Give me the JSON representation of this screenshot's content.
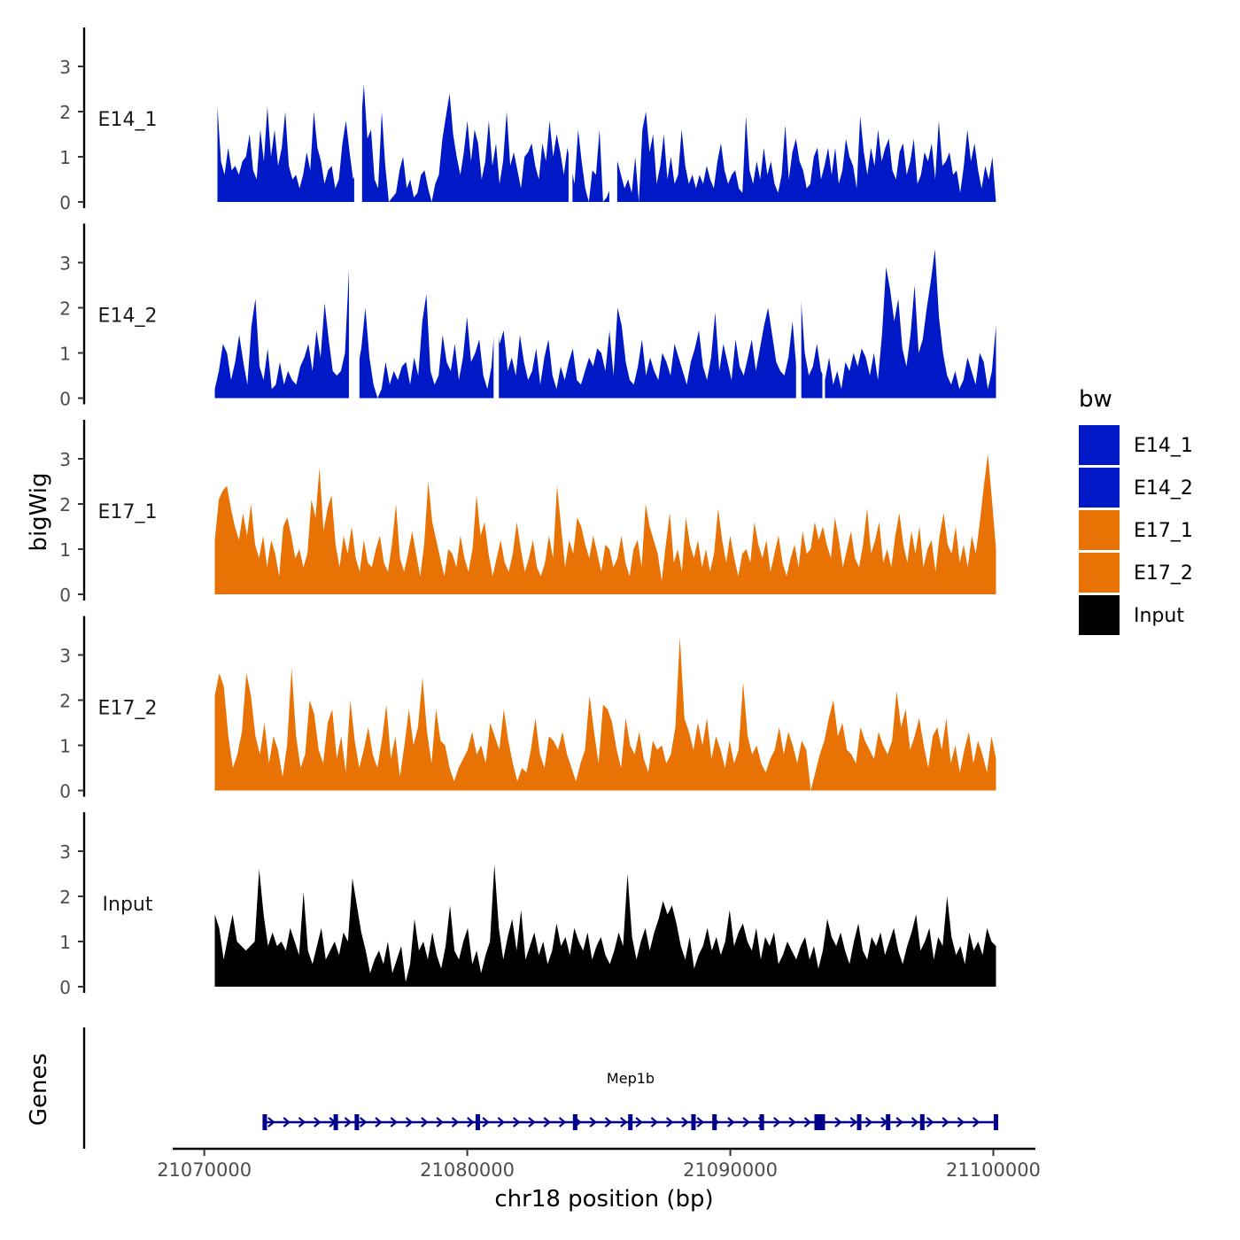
{
  "chart_data": {
    "type": "area",
    "ylabel": "bigWig",
    "xlabel": "chr18 position (bp)",
    "genes_label": "Genes",
    "legend": {
      "title": "bw",
      "position": "right",
      "entries": [
        {
          "name": "E14_1",
          "color": "#0019c6"
        },
        {
          "name": "E14_2",
          "color": "#0019c6"
        },
        {
          "name": "E17_1",
          "color": "#e87203"
        },
        {
          "name": "E17_2",
          "color": "#e87203"
        },
        {
          "name": "Input",
          "color": "#000000"
        }
      ]
    },
    "xlim": [
      21068800,
      21101600
    ],
    "x_ticks": [
      21070000,
      21080000,
      21090000,
      21100000
    ],
    "x_tick_labels": [
      "21070000",
      "21080000",
      "21090000",
      "21100000"
    ],
    "track_ylim": [
      0,
      3.9
    ],
    "y_ticks": [
      0,
      1,
      2,
      3
    ],
    "y_tick_labels": [
      "0",
      "1",
      "2",
      "3"
    ],
    "tracks": [
      {
        "name": "E14_1",
        "label": "E14_1",
        "color": "#0019c6",
        "x_start": 21070500,
        "x_end": 21100100,
        "values": [
          2.1,
          0.9,
          0.6,
          1.2,
          0.7,
          0.8,
          0.6,
          0.9,
          1.0,
          1.5,
          0.7,
          0.5,
          1.6,
          0.9,
          2.1,
          1.0,
          1.6,
          0.8,
          1.2,
          2.0,
          0.8,
          0.5,
          0.6,
          0.3,
          0.6,
          1.1,
          0.7,
          2.0,
          1.2,
          0.9,
          0.4,
          0.7,
          0.8,
          0.3,
          0.5,
          1.3,
          1.8,
          1.1,
          0.5,
          0.7,
          1.5,
          2.6,
          1.4,
          1.6,
          0.5,
          0.3,
          2.0,
          0.8,
          0.0,
          0.1,
          0.2,
          0.7,
          1.0,
          0.3,
          0.5,
          0.1,
          0.2,
          0.6,
          0.7,
          0.3,
          0.0,
          0.4,
          0.6,
          1.4,
          1.9,
          2.4,
          1.5,
          1.0,
          0.6,
          1.1,
          1.8,
          0.9,
          1.6,
          1.3,
          0.5,
          0.9,
          1.8,
          0.8,
          1.3,
          0.4,
          0.9,
          2.0,
          0.8,
          1.1,
          0.7,
          0.3,
          1.0,
          1.1,
          1.3,
          0.8,
          0.5,
          1.3,
          0.9,
          1.8,
          1.0,
          1.5,
          1.1,
          0.6,
          1.2,
          0.8,
          0.4,
          1.6,
          0.9,
          0.3,
          0.0,
          0.7,
          0.6,
          1.6,
          0.0,
          0.1,
          0.3,
          0.5,
          0.9,
          0.6,
          0.3,
          0.5,
          0.2,
          1.0,
          0.0,
          1.6,
          2.0,
          1.1,
          1.5,
          0.4,
          0.8,
          1.5,
          0.5,
          1.0,
          0.4,
          0.6,
          1.6,
          0.8,
          0.4,
          0.6,
          0.3,
          0.6,
          0.4,
          0.8,
          0.5,
          0.3,
          0.9,
          1.3,
          0.7,
          0.4,
          0.6,
          0.7,
          0.3,
          0.2,
          1.9,
          0.7,
          0.4,
          0.9,
          0.5,
          1.2,
          0.6,
          0.9,
          0.4,
          0.2,
          0.6,
          1.7,
          0.5,
          1.1,
          1.4,
          0.9,
          0.7,
          0.3,
          0.4,
          1.0,
          1.2,
          0.5,
          0.8,
          1.2,
          0.6,
          1.2,
          0.4,
          0.7,
          1.4,
          1.0,
          0.8,
          0.3,
          1.9,
          1.1,
          0.6,
          1.2,
          0.8,
          1.6,
          0.9,
          1.2,
          1.4,
          0.7,
          0.5,
          1.1,
          1.3,
          0.6,
          0.9,
          1.4,
          0.4,
          0.6,
          1.1,
          0.9,
          1.3,
          0.5,
          1.8,
          0.8,
          0.9,
          1.1,
          0.6,
          0.7,
          0.2,
          0.8,
          1.6,
          0.9,
          1.3,
          0.7,
          0.3,
          0.8,
          0.5,
          1.0,
          0.0
        ],
        "gaps": [
          [
            21075700,
            21076000
          ],
          [
            21083850,
            21084000
          ],
          [
            21085400,
            21085700
          ]
        ]
      },
      {
        "name": "E14_2",
        "label": "E14_2",
        "color": "#0019c6",
        "x_start": 21070400,
        "x_end": 21100100,
        "values": [
          0.2,
          0.6,
          1.2,
          1.0,
          0.4,
          0.8,
          1.4,
          0.8,
          0.3,
          1.6,
          2.2,
          0.7,
          0.4,
          1.1,
          0.2,
          0.3,
          0.8,
          0.3,
          0.6,
          0.4,
          0.3,
          0.7,
          0.9,
          1.2,
          0.6,
          1.5,
          0.9,
          2.1,
          1.3,
          0.6,
          0.5,
          0.6,
          1.0,
          2.9,
          1.3,
          0.6,
          1.1,
          2.0,
          0.9,
          0.3,
          0.0,
          0.2,
          0.8,
          0.3,
          0.6,
          0.4,
          0.7,
          0.8,
          0.3,
          0.9,
          0.5,
          1.7,
          2.3,
          0.6,
          0.3,
          0.5,
          1.4,
          0.8,
          0.6,
          1.2,
          0.4,
          0.9,
          1.8,
          0.8,
          1.0,
          1.3,
          0.5,
          0.2,
          0.7,
          1.9,
          1.2,
          1.5,
          0.6,
          0.9,
          0.5,
          1.4,
          0.8,
          0.4,
          0.6,
          1.1,
          0.3,
          0.9,
          1.3,
          0.5,
          0.2,
          0.7,
          0.4,
          0.8,
          1.1,
          0.4,
          0.3,
          0.6,
          0.9,
          0.7,
          1.1,
          1.0,
          0.6,
          1.5,
          0.5,
          2.0,
          1.6,
          0.8,
          0.4,
          0.3,
          0.7,
          1.3,
          0.5,
          0.9,
          0.6,
          0.4,
          1.0,
          0.8,
          0.5,
          1.2,
          0.9,
          0.6,
          0.3,
          0.8,
          1.1,
          1.5,
          0.7,
          0.4,
          0.9,
          1.9,
          0.6,
          1.2,
          0.8,
          0.4,
          1.3,
          0.7,
          0.5,
          0.9,
          1.3,
          0.6,
          1.1,
          1.6,
          2.0,
          1.4,
          0.8,
          0.6,
          0.5,
          0.9,
          1.7,
          0.6,
          2.3,
          1.0,
          0.5,
          0.7,
          1.2,
          0.6,
          0.4,
          0.9,
          0.3,
          0.6,
          0.2,
          0.8,
          0.6,
          1.0,
          0.7,
          1.1,
          0.9,
          0.5,
          1.0,
          0.4,
          1.4,
          2.9,
          2.4,
          1.7,
          2.2,
          1.1,
          0.7,
          1.4,
          2.5,
          1.0,
          1.3,
          2.0,
          2.6,
          3.3,
          1.8,
          1.0,
          0.5,
          0.3,
          0.6,
          0.2,
          0.4,
          0.9,
          0.6,
          0.3,
          1.0,
          0.8,
          0.2,
          0.6,
          1.6
        ],
        "gaps": [
          [
            21075500,
            21075900
          ],
          [
            21081000,
            21081200
          ],
          [
            21092500,
            21092700
          ],
          [
            21093500,
            21093600
          ]
        ]
      },
      {
        "name": "E17_1",
        "label": "E17_1",
        "color": "#e87203",
        "x_start": 21070400,
        "x_end": 21100100,
        "values": [
          1.2,
          2.1,
          2.3,
          2.4,
          1.9,
          1.5,
          1.2,
          1.8,
          1.3,
          2.0,
          1.1,
          0.8,
          1.3,
          0.6,
          1.2,
          0.9,
          0.4,
          1.5,
          1.7,
          1.3,
          0.8,
          1.0,
          0.6,
          0.9,
          2.1,
          1.7,
          2.8,
          1.4,
          1.9,
          2.2,
          1.1,
          0.6,
          1.3,
          0.9,
          1.5,
          0.8,
          0.5,
          1.2,
          0.7,
          0.6,
          1.0,
          1.3,
          0.7,
          0.5,
          1.1,
          2.0,
          0.8,
          0.5,
          0.9,
          1.4,
          0.9,
          0.4,
          1.1,
          2.5,
          1.6,
          1.2,
          0.8,
          0.4,
          1.0,
          0.9,
          0.6,
          1.3,
          0.8,
          0.5,
          1.0,
          2.2,
          1.3,
          1.6,
          0.9,
          0.4,
          0.8,
          1.2,
          0.7,
          0.5,
          0.9,
          1.6,
          1.0,
          0.5,
          0.8,
          1.2,
          0.6,
          0.4,
          0.7,
          1.3,
          0.8,
          2.4,
          1.5,
          0.6,
          1.2,
          0.9,
          1.7,
          1.5,
          1.1,
          0.8,
          1.3,
          0.9,
          0.5,
          1.1,
          1.0,
          0.6,
          0.8,
          1.3,
          0.7,
          0.4,
          1.0,
          1.2,
          0.6,
          2.0,
          1.5,
          1.2,
          0.9,
          0.3,
          1.1,
          1.8,
          0.7,
          1.0,
          0.5,
          1.7,
          1.1,
          0.8,
          1.2,
          0.6,
          1.0,
          0.5,
          0.9,
          1.9,
          1.2,
          0.7,
          1.3,
          0.8,
          0.4,
          0.9,
          1.0,
          0.7,
          1.6,
          1.1,
          0.8,
          1.2,
          0.5,
          0.9,
          1.3,
          0.7,
          0.4,
          0.8,
          1.1,
          0.6,
          1.4,
          0.9,
          1.0,
          1.6,
          1.2,
          1.5,
          1.1,
          0.8,
          1.7,
          1.2,
          0.6,
          1.0,
          1.4,
          0.8,
          0.6,
          1.1,
          1.9,
          0.9,
          1.2,
          1.6,
          0.7,
          1.0,
          0.6,
          1.3,
          1.8,
          1.1,
          0.7,
          1.4,
          0.9,
          1.5,
          0.6,
          1.0,
          1.2,
          0.5,
          1.3,
          1.8,
          1.1,
          0.9,
          1.5,
          0.7,
          1.1,
          0.6,
          1.3,
          0.9,
          1.6,
          2.4,
          3.1,
          2.1,
          1.0
        ]
      },
      {
        "name": "E17_2",
        "label": "E17_2",
        "color": "#e87203",
        "x_start": 21070400,
        "x_end": 21100100,
        "values": [
          2.1,
          2.6,
          2.3,
          1.2,
          0.5,
          0.8,
          1.3,
          2.6,
          2.1,
          1.2,
          0.8,
          1.5,
          0.6,
          1.2,
          0.9,
          0.3,
          1.0,
          2.7,
          1.2,
          0.5,
          0.8,
          2.0,
          1.7,
          0.9,
          0.6,
          1.5,
          1.8,
          0.7,
          1.2,
          0.4,
          2.0,
          1.1,
          0.5,
          0.9,
          1.4,
          0.8,
          0.5,
          1.1,
          1.9,
          0.7,
          1.2,
          0.3,
          1.0,
          1.8,
          1.0,
          1.4,
          2.5,
          1.3,
          0.6,
          1.8,
          1.1,
          1.0,
          0.5,
          0.2,
          0.5,
          0.7,
          0.9,
          1.3,
          0.8,
          1.0,
          0.6,
          1.5,
          1.2,
          0.9,
          1.8,
          1.1,
          0.6,
          0.2,
          0.5,
          0.4,
          0.9,
          1.6,
          0.8,
          0.5,
          1.2,
          1.1,
          0.9,
          1.3,
          0.8,
          0.5,
          0.2,
          0.6,
          0.9,
          2.1,
          1.3,
          0.6,
          1.9,
          1.8,
          1.5,
          0.9,
          0.5,
          1.6,
          1.0,
          0.8,
          1.3,
          0.7,
          0.4,
          1.1,
          0.9,
          1.0,
          0.6,
          0.8,
          1.4,
          3.4,
          1.6,
          1.3,
          0.9,
          1.5,
          1.0,
          1.6,
          0.7,
          1.2,
          0.9,
          0.5,
          1.1,
          0.6,
          0.9,
          2.4,
          1.2,
          0.8,
          1.0,
          0.6,
          0.4,
          0.7,
          0.9,
          1.4,
          0.8,
          1.3,
          1.0,
          0.6,
          1.1,
          0.9,
          0.0,
          0.4,
          0.8,
          1.1,
          1.6,
          2.0,
          1.2,
          1.5,
          0.9,
          0.8,
          0.6,
          1.4,
          1.1,
          0.9,
          0.7,
          1.3,
          1.0,
          0.8,
          1.1,
          2.2,
          1.4,
          1.8,
          0.9,
          1.2,
          1.6,
          1.0,
          0.5,
          1.2,
          1.4,
          0.9,
          1.6,
          0.6,
          1.0,
          0.4,
          0.9,
          1.3,
          0.6,
          1.1,
          0.8,
          0.4,
          1.2,
          0.7
        ]
      },
      {
        "name": "Input",
        "label": "Input",
        "color": "#000000",
        "x_start": 21070400,
        "x_end": 21100100,
        "values": [
          1.6,
          1.3,
          0.6,
          1.1,
          1.6,
          1.0,
          0.9,
          0.8,
          0.9,
          1.0,
          2.6,
          1.6,
          0.9,
          1.2,
          0.9,
          1.0,
          0.8,
          1.3,
          1.0,
          0.7,
          2.1,
          0.8,
          0.5,
          0.9,
          1.3,
          0.6,
          0.8,
          1.0,
          0.7,
          1.2,
          1.0,
          2.4,
          1.8,
          1.2,
          0.8,
          0.3,
          0.6,
          0.8,
          0.5,
          1.0,
          0.3,
          0.6,
          0.9,
          0.1,
          0.5,
          1.5,
          0.8,
          1.0,
          0.6,
          1.2,
          0.7,
          0.4,
          0.9,
          1.8,
          0.8,
          0.6,
          1.0,
          1.3,
          0.5,
          0.8,
          0.3,
          0.7,
          1.0,
          2.7,
          1.3,
          0.6,
          1.1,
          1.5,
          0.8,
          1.7,
          0.6,
          0.9,
          1.2,
          0.7,
          1.0,
          0.5,
          0.8,
          1.4,
          0.9,
          1.1,
          0.7,
          1.3,
          1.0,
          0.8,
          1.2,
          0.6,
          0.9,
          1.1,
          0.7,
          0.5,
          0.8,
          1.2,
          0.9,
          2.5,
          1.1,
          0.6,
          1.0,
          1.3,
          0.8,
          1.2,
          1.5,
          1.9,
          1.6,
          1.8,
          1.4,
          0.9,
          0.6,
          1.1,
          0.4,
          0.7,
          0.9,
          1.3,
          0.8,
          1.1,
          0.7,
          1.0,
          1.7,
          0.9,
          1.2,
          1.4,
          1.0,
          0.8,
          1.3,
          0.6,
          1.1,
          0.9,
          1.2,
          0.5,
          0.7,
          1.0,
          0.8,
          0.6,
          0.9,
          1.1,
          0.6,
          0.9,
          0.4,
          0.8,
          1.5,
          1.1,
          0.9,
          1.2,
          0.8,
          0.5,
          1.0,
          1.4,
          0.8,
          0.6,
          1.1,
          0.9,
          1.2,
          0.7,
          1.0,
          1.3,
          0.8,
          0.5,
          0.9,
          1.2,
          1.6,
          0.8,
          1.0,
          1.3,
          0.6,
          1.1,
          0.9,
          2.0,
          1.1,
          0.7,
          0.9,
          0.5,
          1.2,
          0.8,
          1.0,
          0.7,
          1.3,
          1.0,
          0.9
        ]
      }
    ],
    "gene": {
      "name": "Mep1b",
      "strand": "+",
      "start": 21072300,
      "end": 21100100,
      "exons": [
        21072300,
        21075000,
        21075800,
        21080400,
        21084100,
        21086200,
        21088600,
        21089400,
        21091200,
        21093400,
        21094900,
        21096000,
        21097300,
        21100100
      ]
    }
  }
}
